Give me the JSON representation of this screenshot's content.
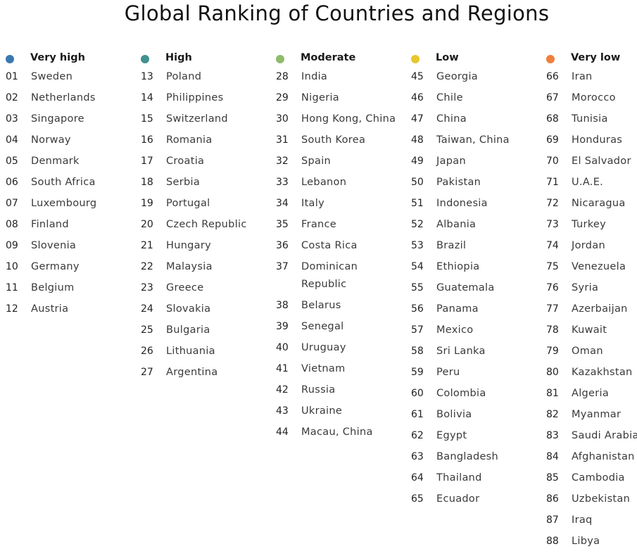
{
  "title": "Global Ranking of Countries and Regions",
  "colors": {
    "very_high": "#3a79b0",
    "high": "#41918e",
    "moderate": "#8fbb6b",
    "low": "#e8c72d",
    "very_low": "#f07f3c"
  },
  "columns": [
    {
      "label": "Very high",
      "color": "#3a79b0",
      "items": [
        {
          "rank": "01",
          "name": "Sweden"
        },
        {
          "rank": "02",
          "name": "Netherlands"
        },
        {
          "rank": "03",
          "name": "Singapore"
        },
        {
          "rank": "04",
          "name": "Norway"
        },
        {
          "rank": "05",
          "name": "Denmark"
        },
        {
          "rank": "06",
          "name": "South Africa"
        },
        {
          "rank": "07",
          "name": "Luxembourg"
        },
        {
          "rank": "08",
          "name": "Finland"
        },
        {
          "rank": "09",
          "name": "Slovenia"
        },
        {
          "rank": "10",
          "name": "Germany"
        },
        {
          "rank": "11",
          "name": "Belgium"
        },
        {
          "rank": "12",
          "name": "Austria"
        }
      ]
    },
    {
      "label": "High",
      "color": "#41918e",
      "items": [
        {
          "rank": "13",
          "name": "Poland"
        },
        {
          "rank": "14",
          "name": "Philippines"
        },
        {
          "rank": "15",
          "name": "Switzerland"
        },
        {
          "rank": "16",
          "name": "Romania"
        },
        {
          "rank": "17",
          "name": "Croatia"
        },
        {
          "rank": "18",
          "name": "Serbia"
        },
        {
          "rank": "19",
          "name": "Portugal"
        },
        {
          "rank": "20",
          "name": "Czech Republic"
        },
        {
          "rank": "21",
          "name": "Hungary"
        },
        {
          "rank": "22",
          "name": "Malaysia"
        },
        {
          "rank": "23",
          "name": "Greece"
        },
        {
          "rank": "24",
          "name": "Slovakia"
        },
        {
          "rank": "25",
          "name": "Bulgaria"
        },
        {
          "rank": "26",
          "name": "Lithuania"
        },
        {
          "rank": "27",
          "name": "Argentina"
        }
      ]
    },
    {
      "label": "Moderate",
      "color": "#8fbb6b",
      "items": [
        {
          "rank": "28",
          "name": "India"
        },
        {
          "rank": "29",
          "name": "Nigeria"
        },
        {
          "rank": "30",
          "name": "Hong Kong, China"
        },
        {
          "rank": "31",
          "name": "South Korea"
        },
        {
          "rank": "32",
          "name": "Spain"
        },
        {
          "rank": "33",
          "name": "Lebanon"
        },
        {
          "rank": "34",
          "name": "Italy"
        },
        {
          "rank": "35",
          "name": "France"
        },
        {
          "rank": "36",
          "name": "Costa Rica"
        },
        {
          "rank": "37",
          "name": "Dominican Republic"
        },
        {
          "rank": "38",
          "name": "Belarus"
        },
        {
          "rank": "39",
          "name": "Senegal"
        },
        {
          "rank": "40",
          "name": "Uruguay"
        },
        {
          "rank": "41",
          "name": "Vietnam"
        },
        {
          "rank": "42",
          "name": "Russia"
        },
        {
          "rank": "43",
          "name": "Ukraine"
        },
        {
          "rank": "44",
          "name": "Macau, China"
        }
      ]
    },
    {
      "label": "Low",
      "color": "#e8c72d",
      "items": [
        {
          "rank": "45",
          "name": "Georgia"
        },
        {
          "rank": "46",
          "name": "Chile"
        },
        {
          "rank": "47",
          "name": "China"
        },
        {
          "rank": "48",
          "name": "Taiwan, China"
        },
        {
          "rank": "49",
          "name": "Japan"
        },
        {
          "rank": "50",
          "name": "Pakistan"
        },
        {
          "rank": "51",
          "name": "Indonesia"
        },
        {
          "rank": "52",
          "name": "Albania"
        },
        {
          "rank": "53",
          "name": "Brazil"
        },
        {
          "rank": "54",
          "name": "Ethiopia"
        },
        {
          "rank": "55",
          "name": "Guatemala"
        },
        {
          "rank": "56",
          "name": "Panama"
        },
        {
          "rank": "57",
          "name": "Mexico"
        },
        {
          "rank": "58",
          "name": "Sri Lanka"
        },
        {
          "rank": "59",
          "name": "Peru"
        },
        {
          "rank": "60",
          "name": "Colombia"
        },
        {
          "rank": "61",
          "name": "Bolivia"
        },
        {
          "rank": "62",
          "name": "Egypt"
        },
        {
          "rank": "63",
          "name": "Bangladesh"
        },
        {
          "rank": "64",
          "name": "Thailand"
        },
        {
          "rank": "65",
          "name": "Ecuador"
        }
      ]
    },
    {
      "label": "Very low",
      "color": "#f07f3c",
      "items": [
        {
          "rank": "66",
          "name": "Iran"
        },
        {
          "rank": "67",
          "name": "Morocco"
        },
        {
          "rank": "68",
          "name": "Tunisia"
        },
        {
          "rank": "69",
          "name": "Honduras"
        },
        {
          "rank": "70",
          "name": "El Salvador"
        },
        {
          "rank": "71",
          "name": "U.A.E."
        },
        {
          "rank": "72",
          "name": "Nicaragua"
        },
        {
          "rank": "73",
          "name": "Turkey"
        },
        {
          "rank": "74",
          "name": "Jordan"
        },
        {
          "rank": "75",
          "name": "Venezuela"
        },
        {
          "rank": "76",
          "name": "Syria"
        },
        {
          "rank": "77",
          "name": "Azerbaijan"
        },
        {
          "rank": "78",
          "name": "Kuwait"
        },
        {
          "rank": "79",
          "name": "Oman"
        },
        {
          "rank": "80",
          "name": "Kazakhstan"
        },
        {
          "rank": "81",
          "name": "Algeria"
        },
        {
          "rank": "82",
          "name": "Myanmar"
        },
        {
          "rank": "83",
          "name": "Saudi Arabia"
        },
        {
          "rank": "84",
          "name": "Afghanistan"
        },
        {
          "rank": "85",
          "name": "Cambodia"
        },
        {
          "rank": "86",
          "name": "Uzbekistan"
        },
        {
          "rank": "87",
          "name": "Iraq"
        },
        {
          "rank": "88",
          "name": "Libya"
        }
      ]
    }
  ]
}
